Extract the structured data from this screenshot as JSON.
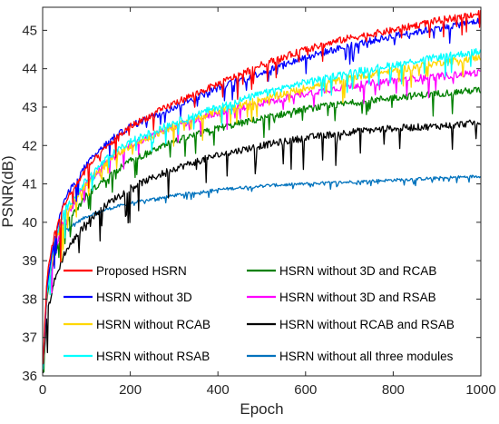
{
  "chart_data": {
    "type": "line",
    "title": "",
    "xlabel": "Epoch",
    "ylabel": "PSNR(dB)",
    "xlim": [
      0,
      1000
    ],
    "ylim": [
      36,
      45.6
    ],
    "x_ticks": [
      "0",
      "200",
      "400",
      "600",
      "800",
      "1000"
    ],
    "y_ticks": [
      "36",
      "37",
      "38",
      "39",
      "40",
      "41",
      "42",
      "43",
      "44",
      "45"
    ],
    "grid": false,
    "legend_position": "bottom",
    "series": [
      {
        "name": "Proposed HSRN",
        "color": "#ff0000",
        "x": [
          0,
          10,
          25,
          50,
          100,
          150,
          200,
          300,
          400,
          500,
          600,
          700,
          800,
          900,
          1000
        ],
        "y": [
          36.0,
          38.6,
          39.6,
          40.5,
          41.4,
          42.0,
          42.5,
          43.1,
          43.6,
          44.1,
          44.5,
          44.8,
          45.0,
          45.25,
          45.45
        ]
      },
      {
        "name": "HSRN without 3D",
        "color": "#0000ff",
        "x": [
          0,
          10,
          25,
          50,
          100,
          150,
          200,
          300,
          400,
          500,
          600,
          700,
          800,
          900,
          1000
        ],
        "y": [
          36.0,
          38.4,
          39.5,
          40.6,
          41.5,
          42.1,
          42.5,
          43.0,
          43.5,
          43.9,
          44.3,
          44.6,
          44.85,
          45.05,
          45.25
        ]
      },
      {
        "name": "HSRN without RCAB",
        "color": "#ffd700",
        "x": [
          0,
          10,
          25,
          50,
          100,
          150,
          200,
          300,
          400,
          500,
          600,
          700,
          800,
          900,
          1000
        ],
        "y": [
          36.0,
          38.2,
          39.3,
          40.2,
          41.0,
          41.6,
          42.0,
          42.5,
          42.9,
          43.2,
          43.5,
          43.75,
          43.95,
          44.15,
          44.3
        ]
      },
      {
        "name": "HSRN without RSAB",
        "color": "#00ffff",
        "x": [
          0,
          10,
          25,
          50,
          100,
          150,
          200,
          300,
          400,
          500,
          600,
          700,
          800,
          900,
          1000
        ],
        "y": [
          36.0,
          38.3,
          39.4,
          40.3,
          41.1,
          41.7,
          42.1,
          42.6,
          43.0,
          43.35,
          43.65,
          43.9,
          44.1,
          44.3,
          44.45
        ]
      },
      {
        "name": "HSRN without 3D and RCAB",
        "color": "#008000",
        "x": [
          0,
          10,
          25,
          50,
          100,
          150,
          200,
          300,
          400,
          500,
          600,
          700,
          800,
          900,
          1000
        ],
        "y": [
          36.0,
          38.1,
          39.0,
          39.9,
          40.7,
          41.2,
          41.6,
          42.1,
          42.45,
          42.7,
          42.95,
          43.1,
          43.25,
          43.35,
          43.45
        ]
      },
      {
        "name": "HSRN without 3D and RSAB",
        "color": "#ff00ff",
        "x": [
          0,
          10,
          25,
          50,
          100,
          150,
          200,
          300,
          400,
          500,
          600,
          700,
          800,
          900,
          1000
        ],
        "y": [
          36.0,
          38.2,
          39.2,
          40.1,
          41.0,
          41.6,
          42.0,
          42.5,
          42.85,
          43.1,
          43.35,
          43.55,
          43.7,
          43.8,
          43.9
        ]
      },
      {
        "name": "HSRN without RCAB and RSAB",
        "color": "#000000",
        "x": [
          0,
          10,
          25,
          50,
          100,
          150,
          200,
          300,
          400,
          500,
          600,
          700,
          800,
          900,
          1000
        ],
        "y": [
          36.0,
          37.6,
          38.4,
          39.2,
          40.0,
          40.5,
          40.9,
          41.4,
          41.75,
          42.0,
          42.2,
          42.35,
          42.45,
          42.5,
          42.6
        ]
      },
      {
        "name": "HSRN without all three modules",
        "color": "#0072bd",
        "x": [
          0,
          10,
          25,
          50,
          100,
          150,
          200,
          300,
          400,
          500,
          600,
          700,
          800,
          900,
          1000
        ],
        "y": [
          36.0,
          38.5,
          39.3,
          39.8,
          40.15,
          40.35,
          40.5,
          40.7,
          40.85,
          40.95,
          41.0,
          41.05,
          41.1,
          41.15,
          41.2
        ]
      }
    ]
  }
}
